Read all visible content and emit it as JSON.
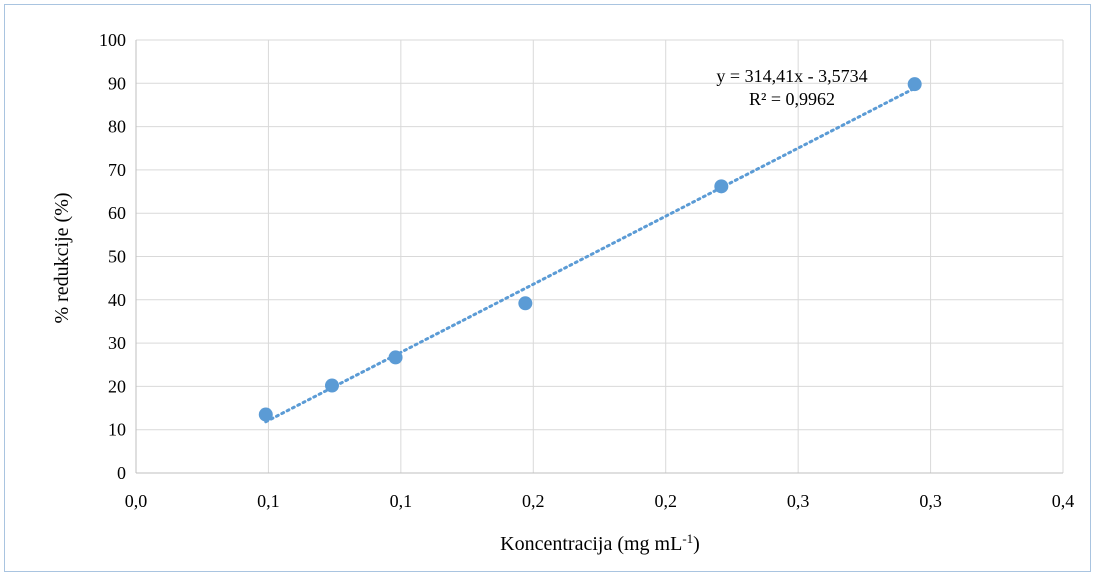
{
  "chart_data": {
    "type": "scatter",
    "title": "",
    "xlabel": "Koncentracija (mg mL",
    "xlabel_superscript": "-1",
    "xlabel_suffix": ")",
    "ylabel": "% redukcije (%)",
    "xlim": [
      0.0,
      0.35
    ],
    "ylim": [
      0,
      100
    ],
    "x_tick_labels": [
      "0,0",
      "0,1",
      "0,1",
      "0,2",
      "0,2",
      "0,3",
      "0,3",
      "0,4"
    ],
    "y_tick_labels": [
      "0",
      "10",
      "20",
      "30",
      "40",
      "50",
      "60",
      "70",
      "80",
      "90",
      "100"
    ],
    "grid": true,
    "series": [
      {
        "points": [
          {
            "x": 0.049,
            "y": 13.5
          },
          {
            "x": 0.074,
            "y": 20.2
          },
          {
            "x": 0.098,
            "y": 26.7
          },
          {
            "x": 0.147,
            "y": 39.2
          },
          {
            "x": 0.221,
            "y": 66.2
          },
          {
            "x": 0.294,
            "y": 89.8
          }
        ],
        "color": "#5b9bd5"
      }
    ],
    "trendline": {
      "slope": 314.41,
      "intercept": -3.5734,
      "x_start": 0.049,
      "x_end": 0.294,
      "color": "#5b9bd5",
      "style": "dotted"
    },
    "annotations": {
      "equation": "y = 314,41x - 3,5734",
      "r_squared": "R² = 0,9962"
    },
    "legend": "none"
  }
}
